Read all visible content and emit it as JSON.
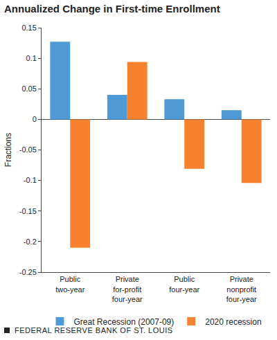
{
  "chart_data": {
    "type": "bar",
    "title": "Annualized Change in First-time Enrollment",
    "y_label": "Fractions",
    "categories": [
      "Public two-year",
      "Private for-profit four-year",
      "Public four-year",
      "Private nonprofit four-year"
    ],
    "series": [
      {
        "name": "Great Recession (2007-09)",
        "color": "#4e9ad6",
        "values": [
          0.127,
          0.04,
          0.033,
          0.015
        ]
      },
      {
        "name": "2020 recession",
        "color": "#f6822f",
        "values": [
          -0.21,
          0.094,
          -0.081,
          -0.104
        ]
      }
    ],
    "ylim": [
      -0.25,
      0.15
    ],
    "yticks": [
      -0.25,
      -0.2,
      -0.15,
      -0.1,
      -0.05,
      0,
      0.05,
      0.1,
      0.15
    ],
    "grid": false,
    "legend": "bottom",
    "source": "FEDERAL RESERVE BANK OF ST. LOUIS"
  }
}
